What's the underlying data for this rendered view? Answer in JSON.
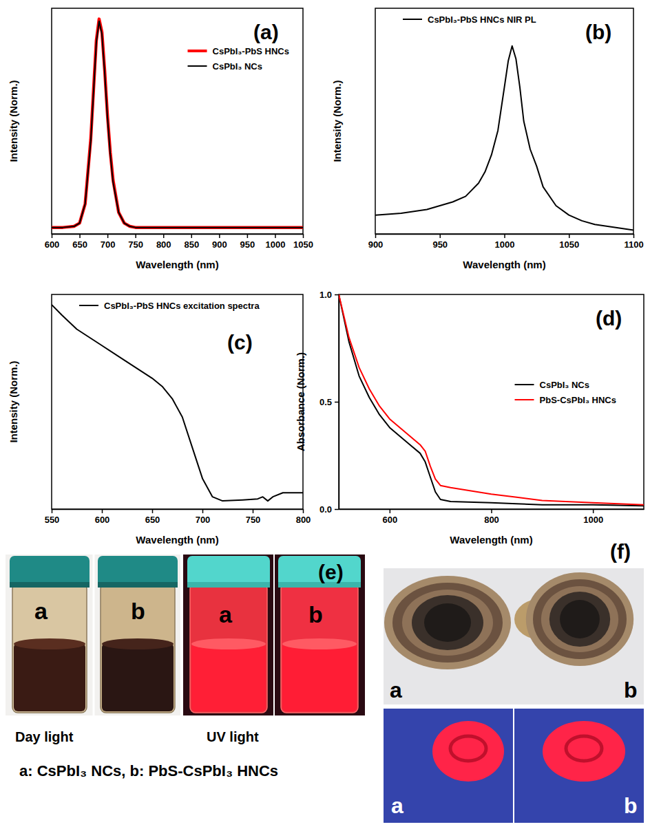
{
  "chart_data": [
    {
      "type": "line",
      "panel_label": "(a)",
      "x_label": "Wavelength (nm)",
      "y_label": "Intensity (Norm.)",
      "x": [
        600,
        620,
        640,
        650,
        660,
        670,
        675,
        680,
        685,
        690,
        695,
        700,
        705,
        710,
        720,
        730,
        740,
        750,
        775,
        800,
        850,
        900,
        950,
        1000,
        1050
      ],
      "series": [
        {
          "name": "CsPbI₃-PbS HNCs",
          "color": "#ff0000",
          "values": [
            0.03,
            0.03,
            0.035,
            0.05,
            0.14,
            0.44,
            0.67,
            0.9,
            1.0,
            0.94,
            0.76,
            0.55,
            0.38,
            0.25,
            0.1,
            0.05,
            0.035,
            0.03,
            0.03,
            0.03,
            0.03,
            0.03,
            0.03,
            0.03,
            0.03
          ]
        },
        {
          "name": "CsPbI₃ NCs",
          "color": "#000000",
          "values": [
            0.03,
            0.03,
            0.035,
            0.05,
            0.14,
            0.43,
            0.66,
            0.89,
            0.99,
            0.93,
            0.75,
            0.54,
            0.37,
            0.24,
            0.1,
            0.05,
            0.035,
            0.03,
            0.03,
            0.03,
            0.03,
            0.03,
            0.03,
            0.03,
            0.03
          ]
        }
      ],
      "xlim": [
        600,
        1050
      ],
      "xticks": [
        600,
        650,
        700,
        750,
        800,
        850,
        900,
        950,
        1000,
        1050
      ],
      "ylim": [
        0,
        1.05
      ],
      "tick_labels": "x",
      "legend": "upper right"
    },
    {
      "type": "line",
      "panel_label": "(b)",
      "x_label": "Wavelength (nm)",
      "y_label": "Intensity (Norm.)",
      "x": [
        900,
        920,
        940,
        950,
        960,
        970,
        980,
        985,
        990,
        995,
        1000,
        1003,
        1006,
        1009,
        1012,
        1015,
        1020,
        1025,
        1030,
        1040,
        1050,
        1060,
        1070,
        1080,
        1090,
        1100
      ],
      "series": [
        {
          "name": "CsPbI₃-PbS HNCs NIR PL",
          "color": "#000000",
          "values": [
            0.1,
            0.11,
            0.13,
            0.15,
            0.17,
            0.2,
            0.27,
            0.33,
            0.42,
            0.55,
            0.78,
            0.92,
            1.0,
            0.93,
            0.78,
            0.6,
            0.45,
            0.36,
            0.25,
            0.15,
            0.1,
            0.07,
            0.05,
            0.04,
            0.03,
            0.02
          ]
        }
      ],
      "xlim": [
        900,
        1100
      ],
      "xticks": [
        900,
        950,
        1000,
        1050,
        1100
      ],
      "ylim": [
        0,
        1.2
      ],
      "tick_labels": "x",
      "legend": "upper left"
    },
    {
      "type": "line",
      "panel_label": "(c)",
      "x_label": "Wavelength (nm)",
      "y_label": "Intensity (Norm.)",
      "x": [
        550,
        560,
        575,
        600,
        625,
        650,
        660,
        670,
        680,
        690,
        700,
        710,
        720,
        740,
        755,
        760,
        765,
        770,
        780,
        800
      ],
      "series": [
        {
          "name": "CsPbI₃-PbS HNCs excitation spectra",
          "color": "#000000",
          "values": [
            1.0,
            0.95,
            0.88,
            0.8,
            0.72,
            0.64,
            0.6,
            0.54,
            0.45,
            0.3,
            0.15,
            0.06,
            0.04,
            0.045,
            0.05,
            0.06,
            0.04,
            0.06,
            0.08,
            0.08
          ]
        }
      ],
      "xlim": [
        550,
        800
      ],
      "xticks": [
        550,
        600,
        650,
        700,
        750,
        800
      ],
      "ylim": [
        0,
        1.05
      ],
      "tick_labels": "x",
      "legend": "upper left"
    },
    {
      "type": "line",
      "panel_label": "(d)",
      "x_label": "Wavelength (nm)",
      "y_label": "Absorbance (Norm.)",
      "x": [
        500,
        520,
        540,
        560,
        580,
        600,
        620,
        640,
        660,
        670,
        680,
        690,
        700,
        720,
        800,
        850,
        900,
        1000,
        1100
      ],
      "series": [
        {
          "name": "CsPbI₃ NCs",
          "color": "#000000",
          "values": [
            1.0,
            0.78,
            0.62,
            0.52,
            0.44,
            0.38,
            0.34,
            0.3,
            0.26,
            0.22,
            0.15,
            0.08,
            0.045,
            0.035,
            0.03,
            0.025,
            0.02,
            0.02,
            0.015
          ]
        },
        {
          "name": "PbS-CsPbI₃ HNCs",
          "color": "#ff0000",
          "values": [
            1.0,
            0.8,
            0.66,
            0.56,
            0.48,
            0.42,
            0.38,
            0.34,
            0.3,
            0.27,
            0.2,
            0.14,
            0.11,
            0.1,
            0.07,
            0.055,
            0.04,
            0.03,
            0.02
          ]
        }
      ],
      "xlim": [
        500,
        1100
      ],
      "xticks": [
        600,
        800,
        1000
      ],
      "ylim": [
        0,
        1.0
      ],
      "yticks": [
        {
          "value": 0,
          "label": "0.0"
        },
        {
          "value": 0.5,
          "label": "0.5"
        },
        {
          "value": 1.0,
          "label": "1.0"
        }
      ],
      "legend": "center right"
    }
  ],
  "photos": {
    "panels": [
      {
        "label": "(e)",
        "samples": [
          "a",
          "b",
          "a",
          "b"
        ],
        "captions": [
          "Day light",
          "UV light"
        ]
      },
      {
        "label": "(f)",
        "samples": [
          "a",
          "b",
          "a",
          "b"
        ]
      }
    ],
    "key": "a: CsPbI₃ NCs, b: PbS-CsPbI₃ HNCs"
  }
}
